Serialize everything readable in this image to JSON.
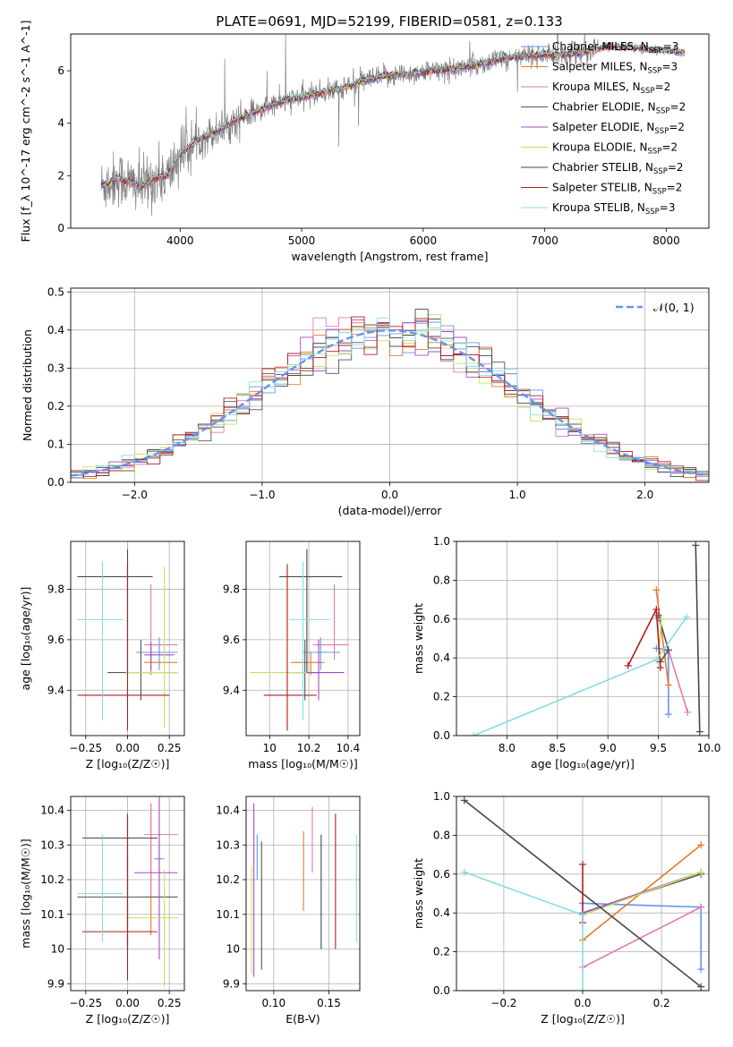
{
  "figure_title": "PLATE=0691, MJD=52199, FIBERID=0581, z=0.133",
  "model_colors": [
    "#6495ed",
    "#e8792b",
    "#e07ab2",
    "#555555",
    "#a64bc6",
    "#c8e060",
    "#484848",
    "#b01f1f",
    "#87dde0"
  ],
  "chart_data": [
    {
      "id": "spectrum",
      "type": "line",
      "title": "PLATE=0691, MJD=52199, FIBERID=0581, z=0.133",
      "xlabel": "wavelength [Angstrom, rest frame]",
      "ylabel": "Flux [f_λ 10^-17 erg cm^-2 s^-1 A^-1]",
      "xlim": [
        3100,
        8350
      ],
      "ylim": [
        0,
        7.4
      ],
      "xticks": [
        4000,
        5000,
        6000,
        7000,
        8000
      ],
      "yticks": [
        0,
        2,
        4,
        6
      ],
      "legend_position": "upper right",
      "legend": [
        {
          "label": "Chabrier MILES, N",
          "sub": "SSP",
          "tail": "=3"
        },
        {
          "label": "Salpeter MILES, N",
          "sub": "SSP",
          "tail": "=3"
        },
        {
          "label": "Kroupa MILES, N",
          "sub": "SSP",
          "tail": "=2"
        },
        {
          "label": "Chabrier ELODIE, N",
          "sub": "SSP",
          "tail": "=2"
        },
        {
          "label": "Salpeter ELODIE, N",
          "sub": "SSP",
          "tail": "=2"
        },
        {
          "label": "Kroupa ELODIE, N",
          "sub": "SSP",
          "tail": "=2"
        },
        {
          "label": "Chabrier STELIB, N",
          "sub": "SSP",
          "tail": "=2"
        },
        {
          "label": "Salpeter STELIB, N",
          "sub": "SSP",
          "tail": "=2"
        },
        {
          "label": "Kroupa STELIB, N",
          "sub": "SSP",
          "tail": "=3"
        }
      ],
      "data_color": "#808080",
      "continuum": {
        "x": [
          3350,
          3500,
          3600,
          3700,
          3800,
          3900,
          4000,
          4100,
          4200,
          4300,
          4500,
          4700,
          4900,
          5100,
          5300,
          5500,
          5700,
          5900,
          6100,
          6300,
          6500,
          6700,
          6900,
          7100,
          7300,
          7500,
          7700,
          7900,
          8100
        ],
        "y": [
          1.6,
          1.9,
          1.7,
          1.6,
          1.9,
          2.0,
          2.8,
          3.2,
          3.5,
          3.7,
          4.2,
          4.6,
          4.9,
          5.1,
          5.3,
          5.6,
          5.8,
          5.9,
          6.0,
          6.1,
          6.3,
          6.5,
          6.6,
          6.6,
          6.7,
          6.9,
          6.9,
          6.8,
          6.7
        ]
      }
    },
    {
      "id": "residuals",
      "type": "step",
      "xlabel": "(data-model)/error",
      "ylabel": "Normed distribution",
      "xlim": [
        -2.5,
        2.5
      ],
      "ylim": [
        0,
        0.51
      ],
      "xticks": [
        -2,
        -1,
        0,
        1,
        2
      ],
      "yticks": [
        0.0,
        0.1,
        0.2,
        0.3,
        0.4,
        0.5
      ],
      "grid": true,
      "legend_position": "upper right",
      "reference_label": "𝒩(0, 1)",
      "reference_color": "#6495ed",
      "bin_width": 0.1
    },
    {
      "id": "age-vs-z",
      "type": "errorbar",
      "xlabel": "Z [log₁₀(Z/Z☉)]",
      "ylabel": "age  [log₁₀(age/yr)]",
      "xlim": [
        -0.34,
        0.34
      ],
      "ylim": [
        9.22,
        9.99
      ],
      "xticks": [
        -0.25,
        0.0,
        0.25
      ],
      "yticks": [
        9.4,
        9.6,
        9.8
      ],
      "grid": true,
      "points": [
        {
          "x": 0.19,
          "y": 9.55,
          "xerr": [
            0.14,
            0.11
          ],
          "yerr": [
            0.07,
            0.06
          ]
        },
        {
          "x": 0.14,
          "y": 9.51,
          "xerr": [
            0.04,
            0.16
          ],
          "yerr": [
            0.05,
            0.04
          ]
        },
        {
          "x": 0.14,
          "y": 9.58,
          "xerr": [
            0.04,
            0.16
          ],
          "yerr": [
            0.06,
            0.24
          ]
        },
        {
          "x": 0.08,
          "y": 9.47,
          "xerr": [
            0.2,
            0.22
          ],
          "yerr": [
            0.11,
            0.13
          ]
        },
        {
          "x": 0.14,
          "y": 9.54,
          "xerr": [
            0.04,
            0.14
          ],
          "yerr": [
            0.06,
            0.05
          ]
        },
        {
          "x": 0.22,
          "y": 9.47,
          "xerr": [
            0.23,
            0.08
          ],
          "yerr": [
            0.22,
            0.42
          ]
        },
        {
          "x": 0.0,
          "y": 9.85,
          "xerr": [
            0.3,
            0.15
          ],
          "yerr": [
            0.38,
            0.11
          ]
        },
        {
          "x": 0.0,
          "y": 9.38,
          "xerr": [
            0.3,
            0.25
          ],
          "yerr": [
            0.14,
            0.52
          ]
        },
        {
          "x": -0.15,
          "y": 9.68,
          "xerr": [
            0.15,
            0.12
          ],
          "yerr": [
            0.4,
            0.23
          ]
        }
      ]
    },
    {
      "id": "age-vs-mass",
      "type": "errorbar",
      "xlabel": "mass [log₁₀(M/M☉)]",
      "ylabel": "",
      "xlim": [
        9.88,
        10.46
      ],
      "ylim": [
        9.22,
        9.99
      ],
      "xticks": [
        10.0,
        10.2,
        10.4
      ],
      "yticks": [
        9.4,
        9.6,
        9.8
      ],
      "grid": true,
      "points": [
        {
          "x": 10.26,
          "y": 9.55,
          "xerr": [
            0.09,
            0.1
          ],
          "yerr": [
            0.07,
            0.06
          ]
        },
        {
          "x": 10.21,
          "y": 9.51,
          "xerr": [
            0.1,
            0.07
          ],
          "yerr": [
            0.05,
            0.04
          ]
        },
        {
          "x": 10.33,
          "y": 9.58,
          "xerr": [
            0.11,
            0.07
          ],
          "yerr": [
            0.06,
            0.24
          ]
        },
        {
          "x": 10.18,
          "y": 9.47,
          "xerr": [
            0.1,
            0.1
          ],
          "yerr": [
            0.11,
            0.13
          ]
        },
        {
          "x": 10.25,
          "y": 9.47,
          "xerr": [
            0.09,
            0.13
          ],
          "yerr": [
            0.11,
            0.13
          ]
        },
        {
          "x": 10.09,
          "y": 9.47,
          "xerr": [
            0.19,
            0.1
          ],
          "yerr": [
            0.22,
            0.42
          ]
        },
        {
          "x": 10.19,
          "y": 9.85,
          "xerr": [
            0.14,
            0.18
          ],
          "yerr": [
            0.38,
            0.11
          ]
        },
        {
          "x": 10.09,
          "y": 9.38,
          "xerr": [
            0.12,
            0.15
          ],
          "yerr": [
            0.14,
            0.52
          ]
        },
        {
          "x": 10.17,
          "y": 9.68,
          "xerr": [
            0.07,
            0.14
          ],
          "yerr": [
            0.4,
            0.23
          ]
        }
      ]
    },
    {
      "id": "weight-vs-age",
      "type": "line",
      "xlabel": "age  [log₁₀(age/yr)]",
      "ylabel": "mass weight",
      "xlim": [
        7.5,
        10.0
      ],
      "ylim": [
        0.0,
        1.0
      ],
      "xticks": [
        8.0,
        8.5,
        9.0,
        9.5,
        10.0
      ],
      "yticks": [
        0.0,
        0.2,
        0.4,
        0.6,
        0.8,
        1.0
      ],
      "grid": true,
      "series": [
        {
          "x": [
            9.6,
            9.6,
            9.48
          ],
          "y": [
            0.11,
            0.44,
            0.45
          ]
        },
        {
          "x": [
            9.6,
            9.48
          ],
          "y": [
            0.26,
            0.75
          ]
        },
        {
          "x": [
            9.79,
            9.6
          ],
          "y": [
            0.12,
            0.44
          ]
        },
        {
          "x": [
            9.52,
            9.6,
            9.5
          ],
          "y": [
            0.38,
            0.44,
            0.62
          ]
        },
        {
          "x": [
            9.5
          ],
          "y": [
            0.61
          ]
        },
        {
          "x": [
            9.5,
            9.53
          ],
          "y": [
            0.4,
            0.6
          ]
        },
        {
          "x": [
            9.91,
            9.87
          ],
          "y": [
            0.02,
            0.98
          ]
        },
        {
          "x": [
            9.2,
            9.48,
            9.52
          ],
          "y": [
            0.36,
            0.65,
            0.35
          ]
        },
        {
          "x": [
            7.67,
            9.48,
            9.78
          ],
          "y": [
            0.0,
            0.39,
            0.61
          ]
        }
      ]
    },
    {
      "id": "mass-vs-z",
      "type": "errorbar",
      "xlabel": "Z [log₁₀(Z/Z☉)]",
      "ylabel": "mass [log₁₀(M/M☉)]",
      "xlim": [
        -0.34,
        0.34
      ],
      "ylim": [
        9.88,
        10.44
      ],
      "xticks": [
        -0.25,
        0.0,
        0.25
      ],
      "yticks": [
        9.9,
        10.0,
        10.1,
        10.2,
        10.3,
        10.4
      ],
      "grid": true,
      "points": [
        {
          "x": 0.19,
          "y": 10.26,
          "xerr": [
            0.03,
            0.03
          ],
          "yerr": [
            0.06,
            0.07
          ]
        },
        {
          "x": 0.14,
          "y": 10.15,
          "xerr": [
            0.04,
            0.16
          ],
          "yerr": [
            0.11,
            0.27
          ]
        },
        {
          "x": 0.14,
          "y": 10.33,
          "xerr": [
            0.04,
            0.16
          ],
          "yerr": [
            0.17,
            0.09
          ]
        },
        {
          "x": 0.0,
          "y": 10.15,
          "xerr": [
            0.3,
            0.3
          ],
          "yerr": [
            0.15,
            0.13
          ]
        },
        {
          "x": 0.19,
          "y": 10.22,
          "xerr": [
            0.15,
            0.11
          ],
          "yerr": [
            0.25,
            0.22
          ]
        },
        {
          "x": 0.22,
          "y": 10.09,
          "xerr": [
            0.23,
            0.08
          ],
          "yerr": [
            0.2,
            0.14
          ]
        },
        {
          "x": 0.0,
          "y": 10.32,
          "xerr": [
            0.27,
            0.18
          ],
          "yerr": [
            0.31,
            0.06
          ]
        },
        {
          "x": 0.0,
          "y": 10.05,
          "xerr": [
            0.27,
            0.18
          ],
          "yerr": [
            0.14,
            0.34
          ]
        },
        {
          "x": -0.15,
          "y": 10.16,
          "xerr": [
            0.15,
            0.12
          ],
          "yerr": [
            0.14,
            0.17
          ]
        }
      ]
    },
    {
      "id": "mass-vs-ebv",
      "type": "errorbar",
      "xlabel": "E(B-V)",
      "ylabel": "",
      "xlim": [
        0.075,
        0.178
      ],
      "ylim": [
        9.88,
        10.44
      ],
      "xticks": [
        0.1,
        0.15
      ],
      "yticks": [
        9.9,
        10.0,
        10.1,
        10.2,
        10.3,
        10.4
      ],
      "grid": true,
      "points": [
        {
          "x": 0.085,
          "y": 10.26,
          "xerr": [
            0.0,
            0.0
          ],
          "yerr": [
            0.06,
            0.07
          ]
        },
        {
          "x": 0.127,
          "y": 10.23,
          "xerr": [
            0.0,
            0.0
          ],
          "yerr": [
            0.12,
            0.11
          ]
        },
        {
          "x": 0.135,
          "y": 10.31,
          "xerr": [
            0.0,
            0.0
          ],
          "yerr": [
            0.09,
            0.1
          ]
        },
        {
          "x": 0.089,
          "y": 10.12,
          "xerr": [
            0.0,
            0.0
          ],
          "yerr": [
            0.18,
            0.19
          ]
        },
        {
          "x": 0.082,
          "y": 10.22,
          "xerr": [
            0.0,
            0.0
          ],
          "yerr": [
            0.3,
            0.2
          ]
        },
        {
          "x": 0.08,
          "y": 10.1,
          "xerr": [
            0.0,
            0.0
          ],
          "yerr": [
            0.17,
            0.14
          ]
        },
        {
          "x": 0.143,
          "y": 10.16,
          "xerr": [
            0.0,
            0.0
          ],
          "yerr": [
            0.16,
            0.17
          ]
        },
        {
          "x": 0.156,
          "y": 10.16,
          "xerr": [
            0.0,
            0.0
          ],
          "yerr": [
            0.16,
            0.23
          ]
        },
        {
          "x": 0.175,
          "y": 10.17,
          "xerr": [
            0.0,
            0.0
          ],
          "yerr": [
            0.15,
            0.16
          ]
        }
      ]
    },
    {
      "id": "weight-vs-z",
      "type": "line",
      "xlabel": "Z [log₁₀(Z/Z☉)]",
      "ylabel": "mass weight",
      "xlim": [
        -0.32,
        0.32
      ],
      "ylim": [
        0.0,
        1.0
      ],
      "xticks": [
        -0.2,
        0.0,
        0.2
      ],
      "yticks": [
        0.0,
        0.2,
        0.4,
        0.6,
        0.8,
        1.0
      ],
      "grid": true,
      "series": [
        {
          "x": [
            0.3,
            0.3,
            0.0
          ],
          "y": [
            0.11,
            0.43,
            0.45
          ]
        },
        {
          "x": [
            0.0,
            0.3
          ],
          "y": [
            0.26,
            0.75
          ]
        },
        {
          "x": [
            0.0,
            0.3
          ],
          "y": [
            0.12,
            0.43
          ]
        },
        {
          "x": [
            0.0,
            0.3
          ],
          "y": [
            0.4,
            0.6
          ]
        },
        {
          "x": [
            0.0,
            0.3
          ],
          "y": [
            0.4,
            0.61
          ]
        },
        {
          "x": [
            0.0,
            0.3
          ],
          "y": [
            0.39,
            0.61
          ]
        },
        {
          "x": [
            -0.3,
            0.3
          ],
          "y": [
            0.98,
            0.02
          ]
        },
        {
          "x": [
            0.0,
            0.0
          ],
          "y": [
            0.35,
            0.65
          ]
        },
        {
          "x": [
            -0.3,
            0.0,
            0.0
          ],
          "y": [
            0.61,
            0.39,
            0.0
          ]
        }
      ]
    }
  ]
}
